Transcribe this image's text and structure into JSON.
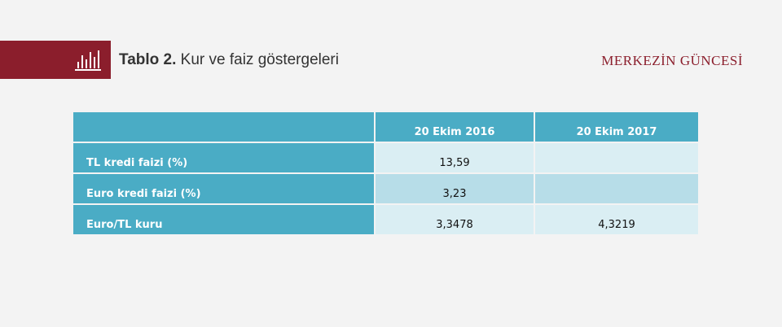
{
  "header": {
    "title_bold": "Tablo 2.",
    "title_rest": " Kur ve faiz göstergeleri",
    "brand": "MERKEZİN GÜNCESİ",
    "icon": "bar-chart-icon",
    "accent_color": "#8b1e2c"
  },
  "table": {
    "columns": [
      "",
      "20 Ekim 2016",
      "20 Ekim 2017"
    ],
    "rows": [
      {
        "label": "TL kredi faizi (%)",
        "v2016": "13,59",
        "v2017": ""
      },
      {
        "label": "Euro kredi faizi (%)",
        "v2016": "3,23",
        "v2017": ""
      },
      {
        "label": "Euro/TL kuru",
        "v2016": "3,3478",
        "v2017": "4,3219"
      }
    ],
    "header_color": "#4aacc5",
    "light_color": "#daeef3",
    "mid_color": "#b7dde8"
  }
}
